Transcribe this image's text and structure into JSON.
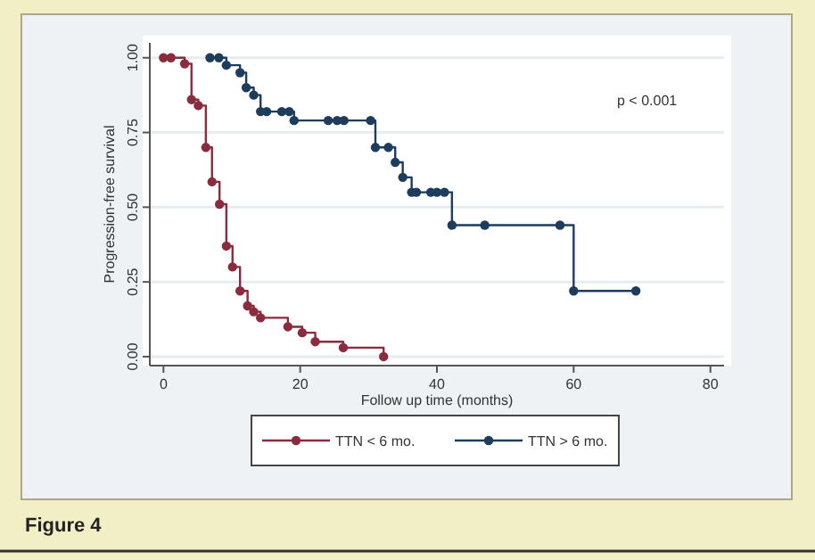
{
  "chart_data": {
    "type": "step",
    "title": "Figure 4",
    "xlabel": "Follow up time (months)",
    "ylabel": "Progression-free survival",
    "annotations": [
      "p < 0.001"
    ],
    "xlim": [
      -2,
      82
    ],
    "xticks": [
      0,
      20,
      40,
      60,
      80
    ],
    "ylim": [
      -0.03,
      1.05
    ],
    "yticks": [
      {
        "value": 0,
        "label": "0.00"
      },
      {
        "value": 0.25,
        "label": "0.25"
      },
      {
        "value": 0.5,
        "label": "0.50"
      },
      {
        "value": 0.75,
        "label": "0.75"
      },
      {
        "value": 1,
        "label": "1.00"
      }
    ],
    "grid": "y",
    "legend": "bottom",
    "marker": "circle",
    "line_style": "solid",
    "series": [
      {
        "name": "TTN < 6 mo.",
        "color": "#8b2c3e",
        "x": [
          0,
          1.1,
          3.1,
          4.1,
          5.1,
          6.2,
          7.1,
          8.2,
          9.2,
          10.1,
          11.2,
          12.3,
          13.2,
          14.2,
          18.2,
          20.3,
          22.2,
          26.3,
          32.2
        ],
        "values": [
          1,
          1,
          0.98,
          0.86,
          0.84,
          0.7,
          0.585,
          0.51,
          0.37,
          0.3,
          0.22,
          0.17,
          0.15,
          0.13,
          0.1,
          0.08,
          0.05,
          0.03,
          0
        ]
      },
      {
        "name": "TTN > 6 mo.",
        "color": "#1e3d5c",
        "x": [
          6.8,
          8.1,
          9.2,
          11.2,
          12.1,
          13.2,
          14.2,
          15.1,
          17.3,
          18.4,
          19.1,
          24.1,
          25.4,
          26.4,
          30.3,
          31,
          32.9,
          33.9,
          35,
          36.3,
          37,
          39.1,
          40,
          41.1,
          42.2,
          47,
          58,
          60,
          69.1
        ],
        "values": [
          1,
          1,
          0.975,
          0.95,
          0.9,
          0.875,
          0.82,
          0.82,
          0.82,
          0.82,
          0.79,
          0.79,
          0.79,
          0.79,
          0.79,
          0.7,
          0.7,
          0.65,
          0.6,
          0.55,
          0.55,
          0.55,
          0.55,
          0.55,
          0.44,
          0.44,
          0.44,
          0.22,
          0.22
        ]
      }
    ]
  }
}
